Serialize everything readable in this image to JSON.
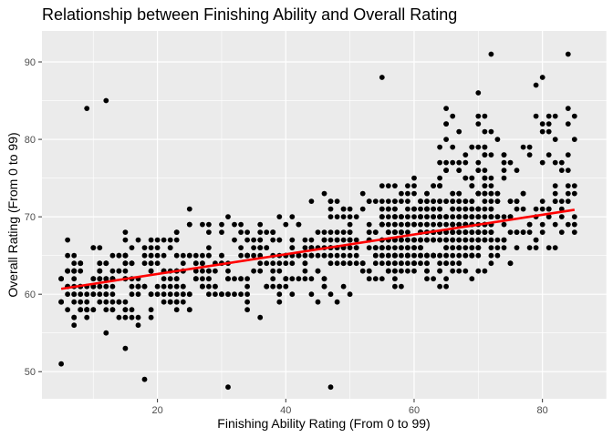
{
  "chart_data": {
    "type": "scatter",
    "title": "Relationship between Finishing Ability and Overall Rating",
    "xlabel": "Finishing Ability Rating (From 0 to 99)",
    "ylabel": "Overall Rating (From 0 to 99)",
    "xlim": [
      2,
      90
    ],
    "ylim": [
      46.5,
      94
    ],
    "x_ticks": [
      20,
      40,
      60,
      80
    ],
    "y_ticks": [
      50,
      60,
      70,
      80,
      90
    ],
    "grid": true,
    "colors": {
      "panel": "#ebebeb",
      "grid": "#ffffff",
      "points": "#000000",
      "trend": "#ff0000"
    },
    "point_count": 1100,
    "series": [
      {
        "type": "scatter",
        "sample_points": [
          {
            "x": 84,
            "y": 91
          },
          {
            "x": 72,
            "y": 91
          },
          {
            "x": 55,
            "y": 88
          },
          {
            "x": 12,
            "y": 85
          },
          {
            "x": 9,
            "y": 84
          },
          {
            "x": 18,
            "y": 49
          },
          {
            "x": 31,
            "y": 48
          },
          {
            "x": 47,
            "y": 48
          },
          {
            "x": 5,
            "y": 51
          },
          {
            "x": 85,
            "y": 83
          },
          {
            "x": 80,
            "y": 88
          },
          {
            "x": 70,
            "y": 86
          }
        ]
      },
      {
        "type": "line",
        "fit": "linear",
        "x": [
          5,
          85
        ],
        "y": [
          60.7,
          70.9
        ]
      }
    ]
  }
}
